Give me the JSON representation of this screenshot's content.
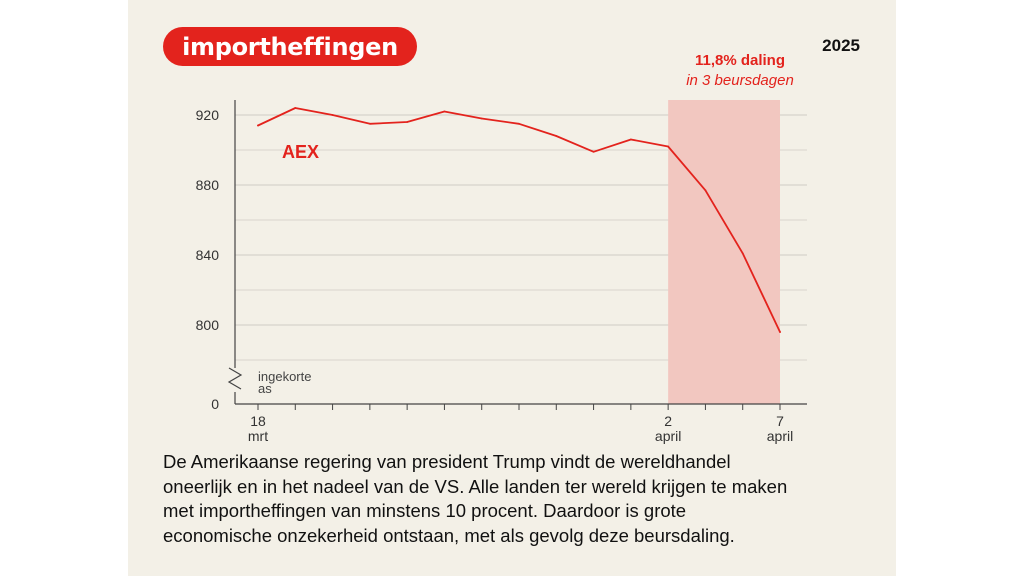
{
  "header": {
    "pill_label": "importheffingen",
    "year": "2025",
    "callout_line1": "11,8% daling",
    "callout_line2": "in 3 beursdagen"
  },
  "colors": {
    "accent": "#e3231d",
    "shade": "#f2c7c0",
    "panel": "#f3f0e7",
    "grid": "#cfccc4"
  },
  "chart_data": {
    "type": "line",
    "title": "",
    "xlabel": "",
    "ylabel": "",
    "series": [
      {
        "name": "AEX",
        "values": [
          914,
          924,
          920,
          915,
          916,
          922,
          918,
          915,
          908,
          899,
          906,
          902,
          877,
          841,
          796
        ]
      }
    ],
    "x_tick_labels": [
      {
        "index": 0,
        "line1": "18",
        "line2": "mrt"
      },
      {
        "index": 11,
        "line1": "2",
        "line2": "april"
      },
      {
        "index": 14,
        "line1": "7",
        "line2": "april"
      }
    ],
    "y_ticks": [
      920,
      880,
      840,
      800
    ],
    "y_zero_label": "0",
    "ylim": [
      780,
      930
    ],
    "broken_axis_label": [
      "ingekorte",
      "as"
    ],
    "highlight": {
      "from_index": 11,
      "to_index": 14
    },
    "grid": true
  },
  "caption": [
    "De Amerikaanse regering van president Trump vindt de wereldhandel",
    "oneerlijk en in het nadeel van de VS. Alle landen ter wereld krijgen te maken",
    "met importheffingen van minstens 10 procent. Daardoor is grote",
    "economische onzekerheid ontstaan, met als gevolg deze beursdaling."
  ]
}
